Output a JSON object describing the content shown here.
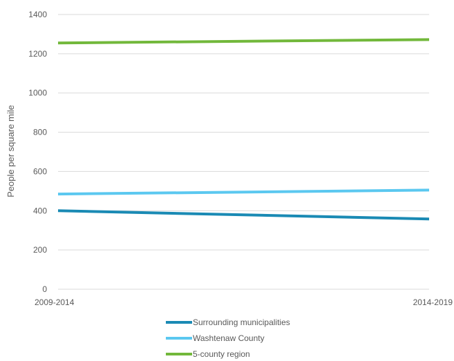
{
  "chart_data": {
    "type": "line",
    "categories": [
      "2009-2014",
      "2014-2019"
    ],
    "series": [
      {
        "name": "Surrounding municipalities",
        "values": [
          400,
          358
        ],
        "color": "#1a8ab4"
      },
      {
        "name": "Washtenaw County",
        "values": [
          485,
          505
        ],
        "color": "#5bc8f0"
      },
      {
        "name": "5-county region",
        "values": [
          1255,
          1272
        ],
        "color": "#72b83b"
      }
    ],
    "title": "",
    "xlabel": "",
    "ylabel": "People per square mile",
    "ylim": [
      0,
      1400
    ],
    "yticks": [
      "0",
      "200",
      "400",
      "600",
      "800",
      "1000",
      "1200",
      "1400"
    ],
    "grid": "horizontal",
    "gridColor": "#d9d9d9",
    "legend": "bottom"
  }
}
